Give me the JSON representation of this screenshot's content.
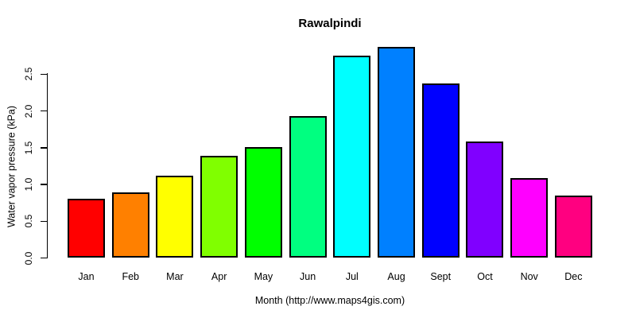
{
  "chart_data": {
    "type": "bar",
    "title": "Rawalpindi",
    "xlabel": "Month (http://www.maps4gis.com)",
    "ylabel": "Water vapor pressure (kPa)",
    "categories": [
      "Jan",
      "Feb",
      "Mar",
      "Apr",
      "May",
      "Jun",
      "Jul",
      "Aug",
      "Sept",
      "Oct",
      "Nov",
      "Dec"
    ],
    "values": [
      0.8,
      0.89,
      1.11,
      1.38,
      1.5,
      1.92,
      2.75,
      2.87,
      2.37,
      1.58,
      1.08,
      0.84
    ],
    "bar_colors": [
      "#FF0000",
      "#FF8000",
      "#FFFF00",
      "#80FF00",
      "#00FF00",
      "#00FF80",
      "#00FFFF",
      "#0080FF",
      "#0000FF",
      "#8000FF",
      "#FF00FF",
      "#FF0080"
    ],
    "bar_border_color": "#000000",
    "y_ticks": [
      "0.0",
      "0.5",
      "1.0",
      "1.5",
      "2.0",
      "2.5"
    ],
    "ylim": [
      0,
      2.5
    ],
    "grid": false,
    "legend": null,
    "background_color": "#FFFFFF"
  }
}
